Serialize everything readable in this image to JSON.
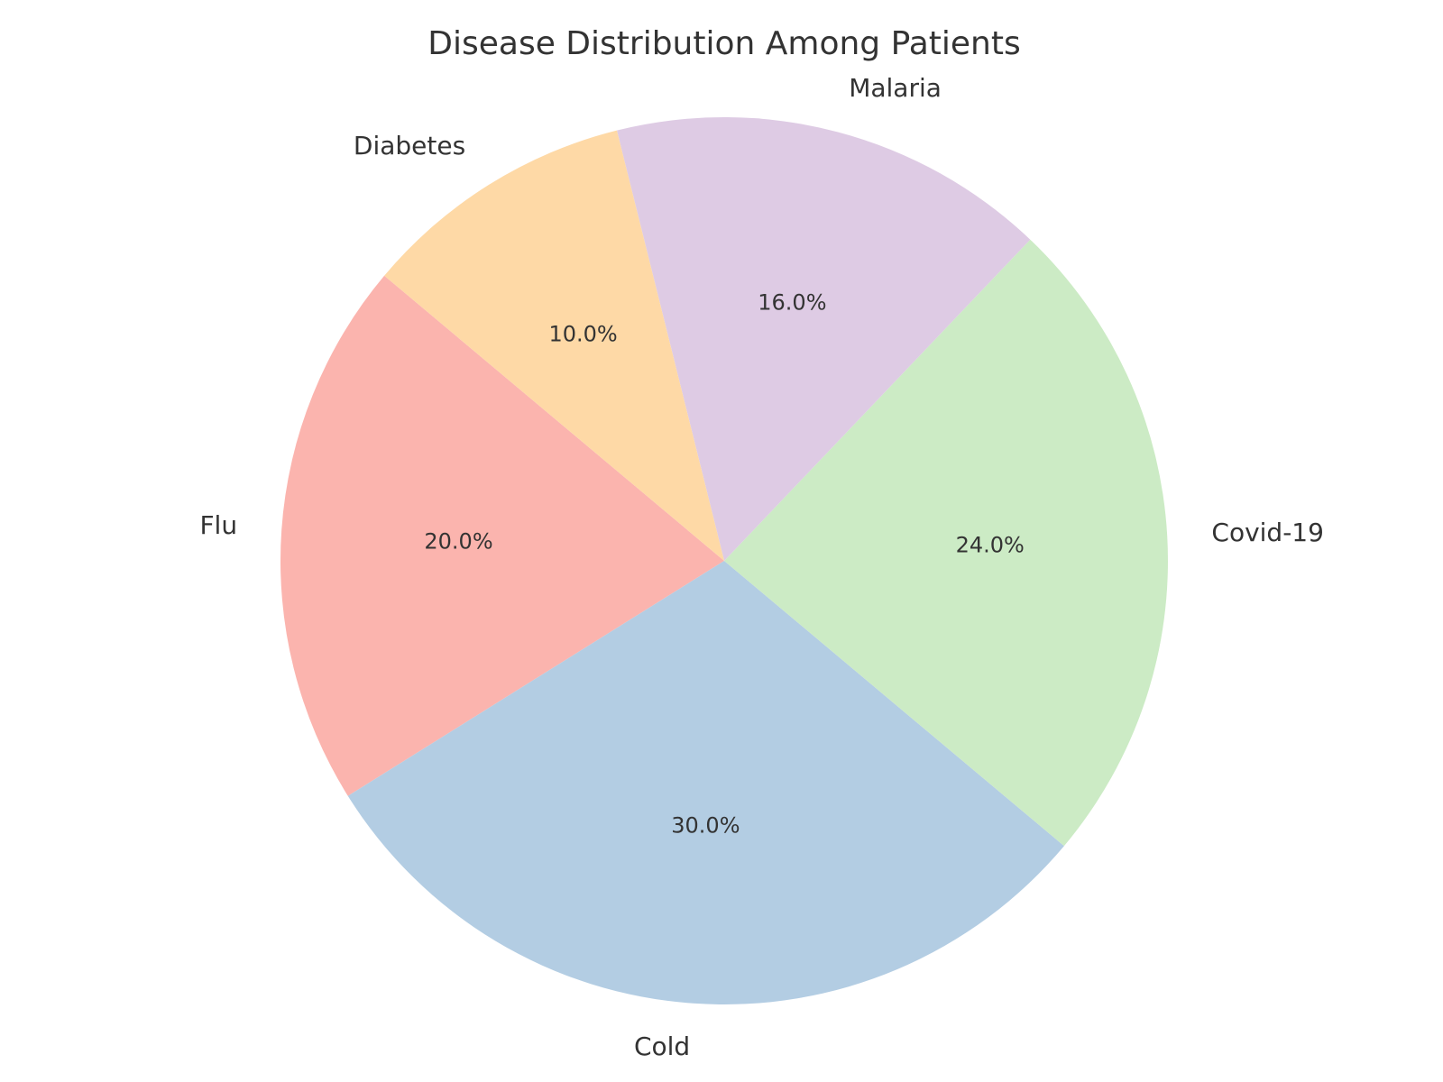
{
  "chart_data": {
    "type": "pie",
    "title": "Disease Distribution Among Patients",
    "start_angle_deg": 140,
    "direction": "counterclockwise",
    "slices": [
      {
        "label": "Flu",
        "value": 20,
        "pct_text": "20.0%",
        "color": "#fbb4ae"
      },
      {
        "label": "Cold",
        "value": 30,
        "pct_text": "30.0%",
        "color": "#b3cde3"
      },
      {
        "label": "Covid-19",
        "value": 24,
        "pct_text": "24.0%",
        "color": "#ccebc5"
      },
      {
        "label": "Malaria",
        "value": 16,
        "pct_text": "16.0%",
        "color": "#decbe4"
      },
      {
        "label": "Diabetes",
        "value": 10,
        "pct_text": "10.0%",
        "color": "#fed9a6"
      }
    ]
  }
}
